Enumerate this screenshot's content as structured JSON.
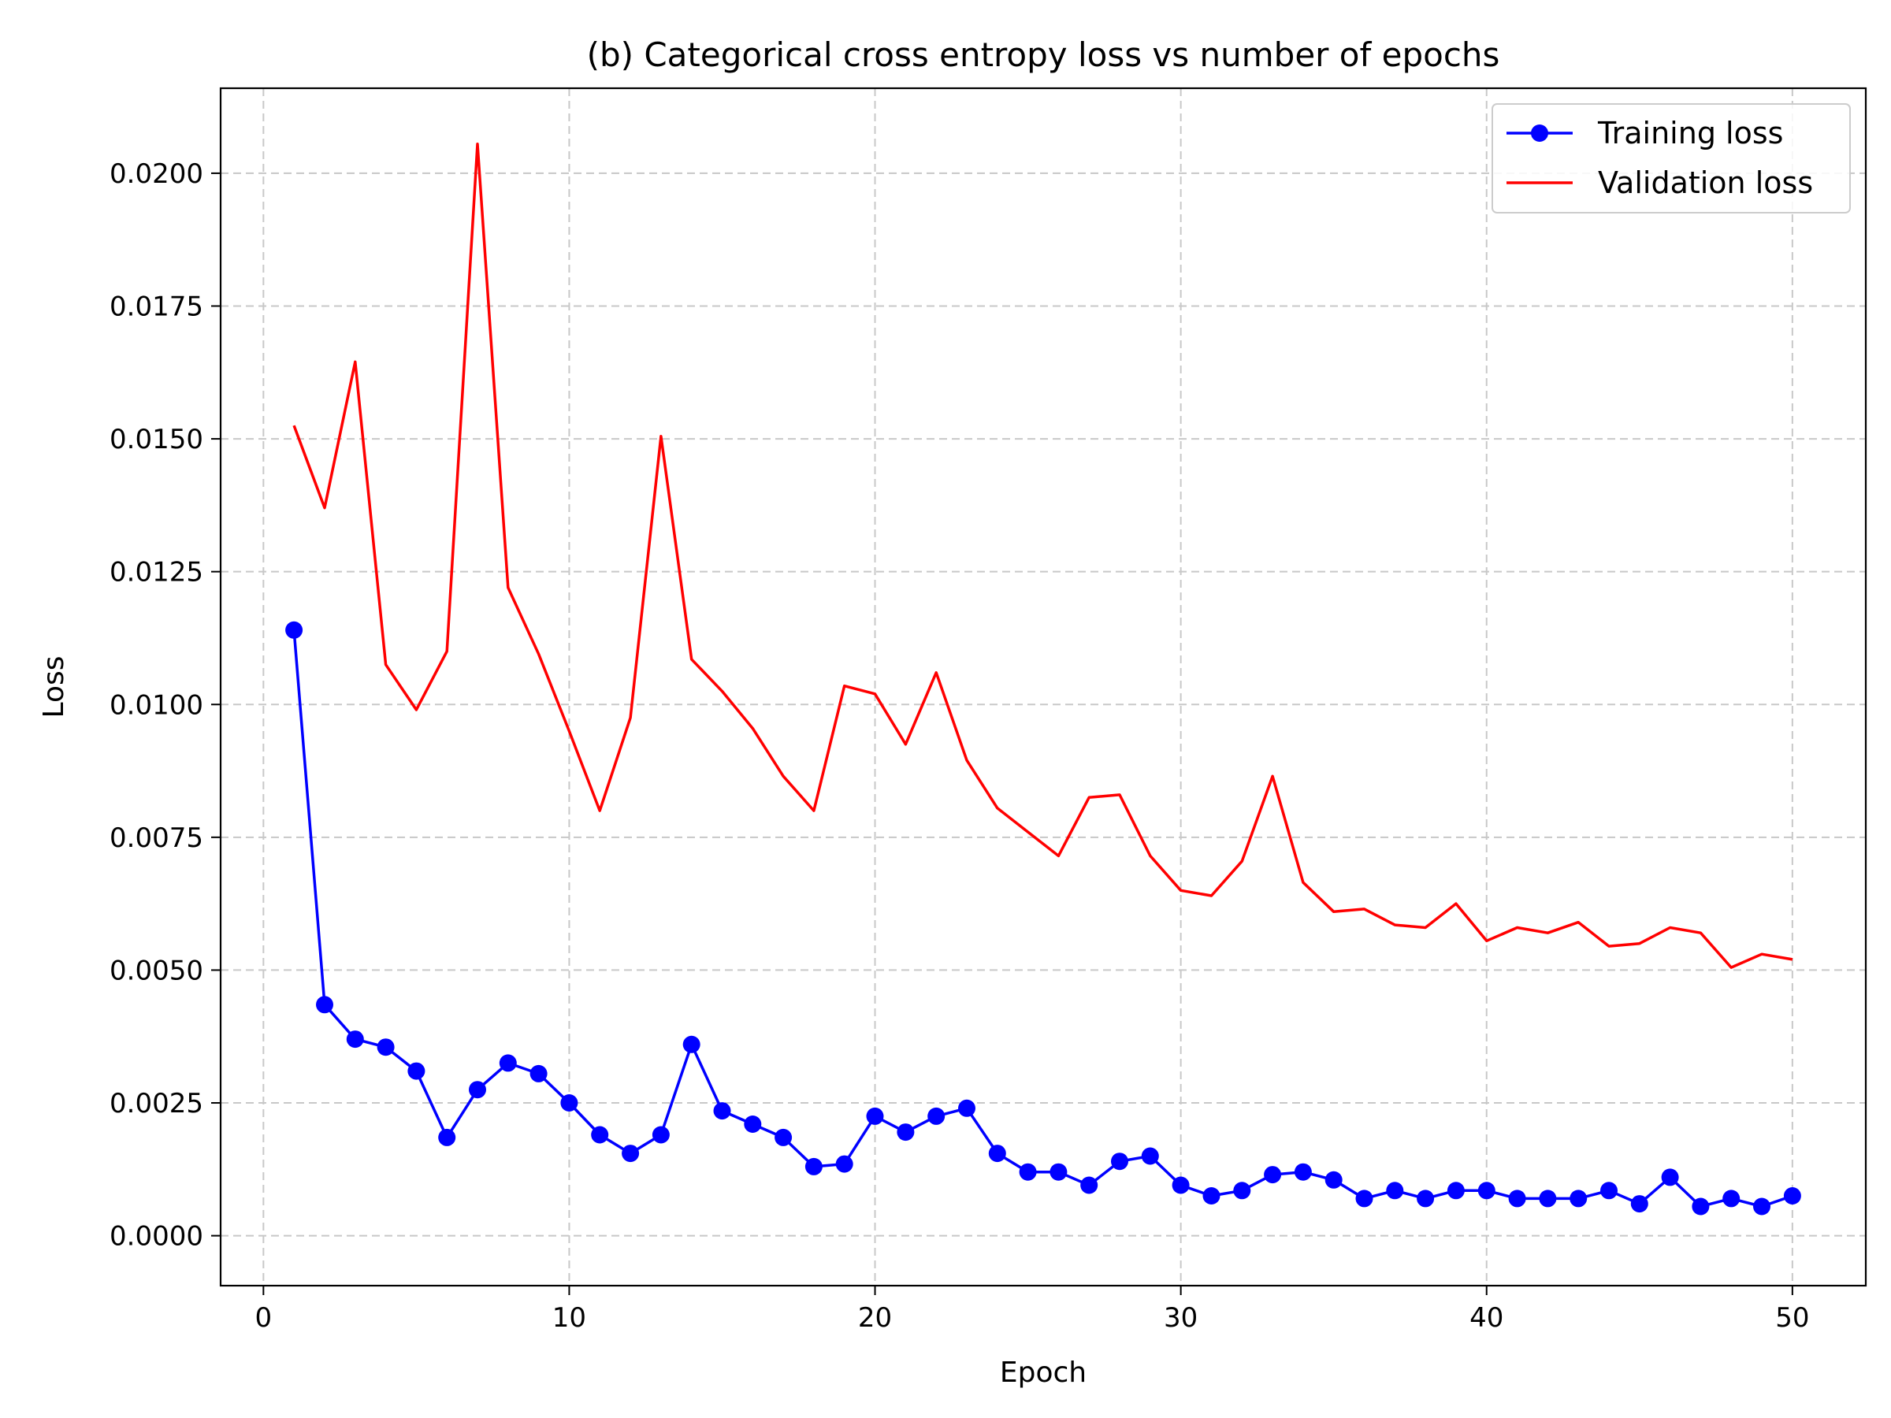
{
  "chart_data": {
    "type": "line",
    "title": "(b) Categorical cross entropy loss vs number of epochs",
    "xlabel": "Epoch",
    "ylabel": "Loss",
    "xlim": [
      -1.4,
      52.4
    ],
    "ylim": [
      -0.00094,
      0.0216
    ],
    "xticks": [
      0,
      10,
      20,
      30,
      40,
      50
    ],
    "xtick_labels": [
      "0",
      "10",
      "20",
      "30",
      "40",
      "50"
    ],
    "yticks": [
      0.0,
      0.0025,
      0.005,
      0.0075,
      0.01,
      0.0125,
      0.015,
      0.0175,
      0.02
    ],
    "ytick_labels": [
      "0.0000",
      "0.0025",
      "0.0050",
      "0.0075",
      "0.0100",
      "0.0125",
      "0.0150",
      "0.0175",
      "0.0200"
    ],
    "grid": true,
    "grid_style": "dashed",
    "legend_position": "top-right",
    "x": [
      1,
      2,
      3,
      4,
      5,
      6,
      7,
      8,
      9,
      10,
      11,
      12,
      13,
      14,
      15,
      16,
      17,
      18,
      19,
      20,
      21,
      22,
      23,
      24,
      25,
      26,
      27,
      28,
      29,
      30,
      31,
      32,
      33,
      34,
      35,
      36,
      37,
      38,
      39,
      40,
      41,
      42,
      43,
      44,
      45,
      46,
      47,
      48,
      49,
      50
    ],
    "series": [
      {
        "name": "Training loss",
        "color": "#0000ff",
        "marker": "circle",
        "values": [
          0.0114,
          0.00435,
          0.0037,
          0.00355,
          0.0031,
          0.00185,
          0.00275,
          0.00325,
          0.00305,
          0.0025,
          0.0019,
          0.00155,
          0.0019,
          0.0036,
          0.00235,
          0.0021,
          0.00185,
          0.0013,
          0.00135,
          0.00225,
          0.00195,
          0.00225,
          0.0024,
          0.00155,
          0.0012,
          0.0012,
          0.00095,
          0.0014,
          0.0015,
          0.00095,
          0.00075,
          0.00085,
          0.00115,
          0.0012,
          0.00105,
          0.0007,
          0.00085,
          0.0007,
          0.00085,
          0.00085,
          0.0007,
          0.0007,
          0.0007,
          0.00085,
          0.0006,
          0.0011,
          0.00055,
          0.0007,
          0.00055,
          0.00075
        ]
      },
      {
        "name": "Validation loss",
        "color": "#ff0000",
        "marker": "none",
        "values": [
          0.01525,
          0.0137,
          0.01645,
          0.01075,
          0.0099,
          0.011,
          0.02055,
          0.0122,
          0.01095,
          0.0095,
          0.008,
          0.00975,
          0.01505,
          0.01085,
          0.01025,
          0.00955,
          0.00865,
          0.008,
          0.01035,
          0.0102,
          0.00925,
          0.0106,
          0.00895,
          0.00805,
          0.0076,
          0.00715,
          0.00825,
          0.0083,
          0.00715,
          0.0065,
          0.0064,
          0.00705,
          0.00865,
          0.00665,
          0.0061,
          0.00615,
          0.00585,
          0.0058,
          0.00625,
          0.00555,
          0.0058,
          0.0057,
          0.0059,
          0.00545,
          0.0055,
          0.0058,
          0.0057,
          0.00505,
          0.0053,
          0.0052
        ]
      }
    ]
  }
}
